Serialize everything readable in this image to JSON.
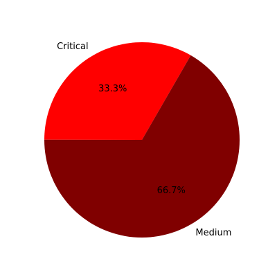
{
  "chart_data": {
    "type": "pie",
    "categories": [
      "Critical",
      "Medium"
    ],
    "values": [
      33.3,
      66.7
    ],
    "percent_labels": [
      "33.3%",
      "66.7%"
    ],
    "colors": [
      "#ff0000",
      "#800000"
    ],
    "title": "",
    "start_angle_deg": 60,
    "direction": "counterclockwise"
  }
}
